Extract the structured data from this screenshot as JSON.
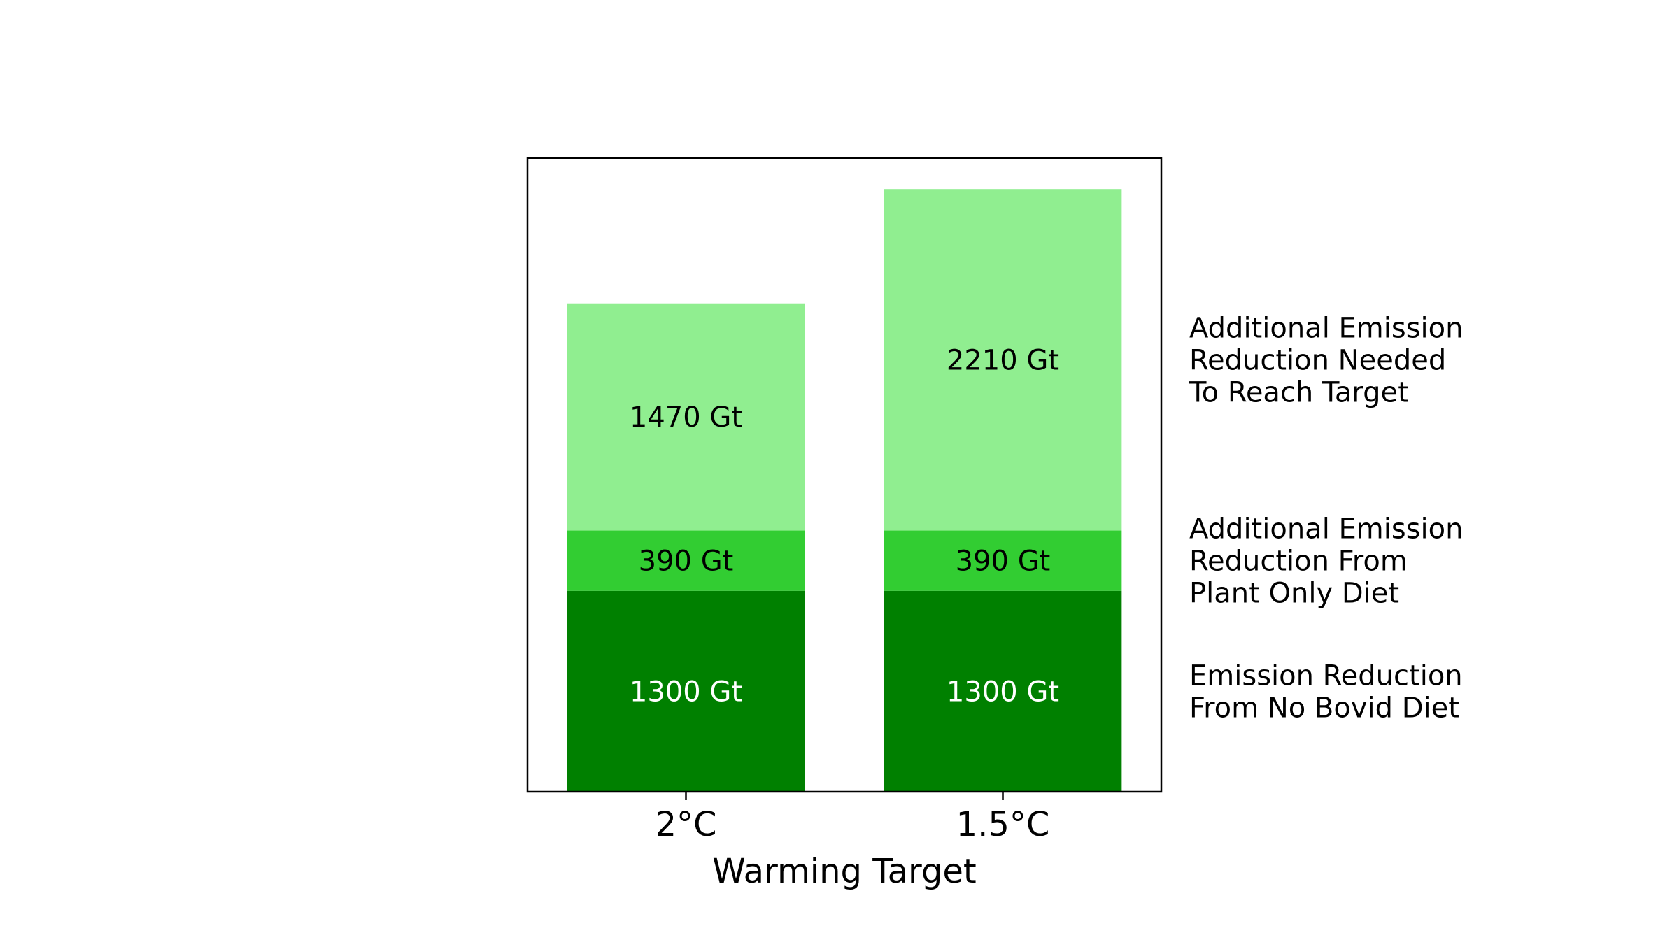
{
  "chart_data": {
    "type": "bar",
    "stacked": true,
    "title": "",
    "xlabel": "Warming Target",
    "ylabel": "",
    "categories": [
      "2°C",
      "1.5°C"
    ],
    "ylim": [
      0,
      4100
    ],
    "grid": false,
    "legend": "right",
    "series": [
      {
        "name": "Emission Reduction\nFrom No Bovid Diet",
        "values": [
          1300,
          1300
        ],
        "labels": [
          "1300 Gt",
          "1300 Gt"
        ],
        "color": "#008000",
        "label_color": "#ffffff"
      },
      {
        "name": "Additional Emission\nReduction From\nPlant Only Diet",
        "values": [
          390,
          390
        ],
        "labels": [
          "390 Gt",
          "390 Gt"
        ],
        "color": "#32cd32",
        "label_color": "#000000"
      },
      {
        "name": "Additional Emission\nReduction Needed\nTo Reach Target",
        "values": [
          1470,
          2210
        ],
        "labels": [
          "1470 Gt",
          "2210 Gt"
        ],
        "color": "#90ee90",
        "label_color": "#000000"
      }
    ]
  }
}
